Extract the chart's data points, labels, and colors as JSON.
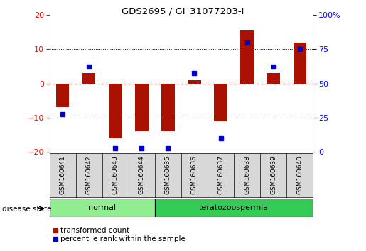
{
  "title": "GDS2695 / GI_31077203-I",
  "samples": [
    "GSM160641",
    "GSM160642",
    "GSM160643",
    "GSM160644",
    "GSM160635",
    "GSM160636",
    "GSM160637",
    "GSM160638",
    "GSM160639",
    "GSM160640"
  ],
  "red_values": [
    -7.0,
    3.0,
    -16.0,
    -14.0,
    -14.0,
    1.0,
    -11.0,
    15.5,
    3.0,
    12.0
  ],
  "blue_values": [
    -9.0,
    5.0,
    -19.0,
    -19.0,
    -19.0,
    3.0,
    -16.0,
    12.0,
    5.0,
    10.0
  ],
  "disease_groups": [
    {
      "label": "normal",
      "start": 0,
      "end": 3,
      "color": "#90EE90"
    },
    {
      "label": "teratozoospermia",
      "start": 4,
      "end": 9,
      "color": "#33CC55"
    }
  ],
  "ylim": [
    -20,
    20
  ],
  "yticks_left": [
    -20,
    -10,
    0,
    10,
    20
  ],
  "yticks_right_pct": [
    0,
    25,
    50,
    75,
    100
  ],
  "red_color": "#AA1100",
  "blue_color": "#0000CC",
  "bar_width": 0.5,
  "blue_marker_size": 5,
  "legend_red": "transformed count",
  "legend_blue": "percentile rank within the sample",
  "disease_state_label": "disease state"
}
